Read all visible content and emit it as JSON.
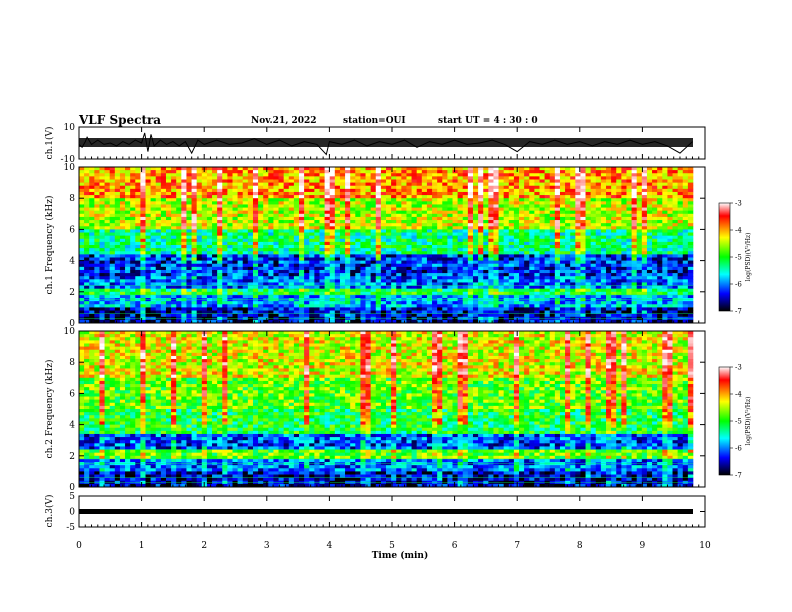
{
  "header": {
    "title": "VLF Spectra",
    "date": "Nov.21, 2022",
    "station": "station=OUI",
    "start": "start  UT =   4 : 30 : 0"
  },
  "colorbar": {
    "label": "log(PSD)(V²/Hz)",
    "ticks": [
      "-3",
      "-4",
      "-5",
      "-6",
      "-7"
    ],
    "colors": [
      "#ffffff",
      "#ff0000",
      "#ffff00",
      "#00ff00",
      "#00ffff",
      "#0000ff",
      "#000000"
    ]
  },
  "chart_data": [
    {
      "type": "line",
      "panel": "ch1-waveform",
      "ylabel": "ch.1(V)",
      "ylim": [
        -10,
        10
      ],
      "yticks": [
        "10",
        "-10"
      ],
      "xlim": [
        0,
        10
      ],
      "series": [
        {
          "x": [
            0,
            0.05,
            0.1,
            0.13,
            0.2,
            0.3,
            0.4,
            0.5,
            0.6,
            0.7,
            0.8,
            0.9,
            1.0,
            1.05,
            1.1,
            1.15,
            1.2,
            1.3,
            1.4,
            1.5,
            1.6,
            1.7,
            1.8,
            1.9,
            2.0,
            2.2,
            2.4,
            2.6,
            2.8,
            3.0,
            3.2,
            3.4,
            3.6,
            3.8,
            3.95,
            4.0,
            4.2,
            4.4,
            4.6,
            4.8,
            5.0,
            5.2,
            5.4,
            5.6,
            5.8,
            6.0,
            6.2,
            6.4,
            6.6,
            6.8,
            7.0,
            7.2,
            7.4,
            7.6,
            7.8,
            8.0,
            8.2,
            8.4,
            8.6,
            8.8,
            9.0,
            9.2,
            9.4,
            9.6,
            9.8
          ],
          "y": [
            -1,
            -3,
            1,
            4,
            -1,
            2,
            -1,
            0,
            -2,
            1,
            -1,
            2,
            0,
            7,
            -6,
            6,
            -2,
            2,
            -1,
            1,
            -2,
            1,
            -7,
            2,
            -1,
            2,
            -1,
            0,
            3,
            -1,
            2,
            -2,
            1,
            -1,
            -8,
            1,
            -1,
            2,
            -2,
            1,
            -1,
            2,
            -3,
            1,
            -1,
            2,
            -1,
            0,
            2,
            -1,
            -6,
            1,
            -1,
            2,
            -1,
            1,
            -2,
            1,
            -1,
            2,
            -1,
            1,
            -2,
            -7,
            1
          ]
        }
      ]
    },
    {
      "type": "heatmap",
      "panel": "ch1-spectrogram",
      "ylabel": "ch.1 Frequency (kHz)",
      "ylim": [
        0,
        10
      ],
      "yticks": [
        "0",
        "2",
        "4",
        "6",
        "8",
        "10"
      ],
      "xlim": [
        0,
        10
      ],
      "zlim": [
        -7,
        -3
      ],
      "band_levels": [
        {
          "f": [
            0,
            1
          ],
          "psd": -6.6
        },
        {
          "f": [
            1,
            1.8
          ],
          "psd": -6.0
        },
        {
          "f": [
            1.8,
            2.2
          ],
          "psd": -5.3
        },
        {
          "f": [
            2.2,
            3
          ],
          "psd": -6.2
        },
        {
          "f": [
            3,
            4.5
          ],
          "psd": -6.4
        },
        {
          "f": [
            4.5,
            6
          ],
          "psd": -5.5
        },
        {
          "f": [
            6,
            8
          ],
          "psd": -4.7
        },
        {
          "f": [
            8,
            10
          ],
          "psd": -4.2
        }
      ]
    },
    {
      "type": "heatmap",
      "panel": "ch2-spectrogram",
      "ylabel": "ch.2 Frequency (kHz)",
      "ylim": [
        0,
        10
      ],
      "yticks": [
        "0",
        "2",
        "4",
        "6",
        "8",
        "10"
      ],
      "xlim": [
        0,
        10
      ],
      "zlim": [
        -7,
        -3
      ],
      "band_levels": [
        {
          "f": [
            0,
            1
          ],
          "psd": -6.6
        },
        {
          "f": [
            1,
            1.8
          ],
          "psd": -6.2
        },
        {
          "f": [
            1.8,
            2.5
          ],
          "psd": -5.0
        },
        {
          "f": [
            2.5,
            3.5
          ],
          "psd": -6.3
        },
        {
          "f": [
            3.5,
            5
          ],
          "psd": -5.3
        },
        {
          "f": [
            5,
            7
          ],
          "psd": -5.0
        },
        {
          "f": [
            7,
            10
          ],
          "psd": -4.6
        }
      ]
    },
    {
      "type": "line",
      "panel": "ch3-waveform",
      "ylabel": "ch.3(V)",
      "ylim": [
        -5,
        5
      ],
      "yticks": [
        "5",
        "0",
        "-5"
      ],
      "xlim": [
        0,
        10
      ],
      "series": [
        {
          "x": [
            0,
            9.8
          ],
          "y": [
            0,
            0
          ]
        }
      ]
    }
  ],
  "xaxis": {
    "label": "Time (min)",
    "ticks": [
      "0",
      "1",
      "2",
      "3",
      "4",
      "5",
      "6",
      "7",
      "8",
      "9",
      "10"
    ]
  }
}
